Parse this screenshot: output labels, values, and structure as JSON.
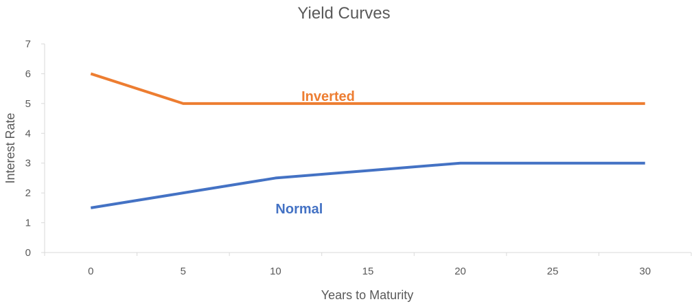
{
  "chart_data": {
    "type": "line",
    "title": "Yield Curves",
    "xlabel": "Years to Maturity",
    "ylabel": "Interest Rate",
    "x_ticks": [
      0,
      5,
      10,
      15,
      20,
      25,
      30
    ],
    "y_ticks": [
      0,
      1,
      2,
      3,
      4,
      5,
      6,
      7
    ],
    "xlim": [
      -2.5,
      32.5
    ],
    "ylim": [
      0,
      7
    ],
    "grid": false,
    "series": [
      {
        "name": "Inverted",
        "color": "#ED7D31",
        "x": [
          0,
          5,
          10,
          15,
          20,
          25,
          30
        ],
        "values": [
          6,
          5,
          5,
          5,
          5,
          5,
          5
        ]
      },
      {
        "name": "Normal",
        "color": "#4472C4",
        "x": [
          0,
          5,
          10,
          15,
          20,
          25,
          30
        ],
        "values": [
          1.5,
          2,
          2.5,
          2.75,
          3,
          3,
          3
        ]
      }
    ]
  }
}
